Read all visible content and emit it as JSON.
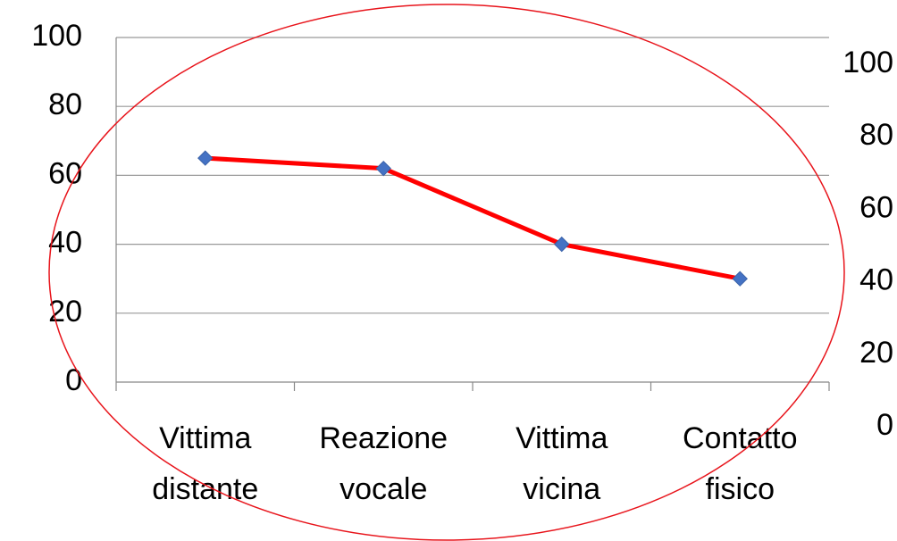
{
  "chart_data": {
    "type": "line",
    "categories": [
      "Vittima distante",
      "Reazione vocale",
      "Vittima vicina",
      "Contatto fisico"
    ],
    "series": [
      {
        "color": "#ff0000",
        "marker_color": "#4472c4",
        "values": [
          65,
          62,
          40,
          30
        ]
      }
    ],
    "ylim": [
      0,
      100
    ],
    "yticks": [
      0,
      20,
      40,
      60,
      80,
      100
    ],
    "y2lim": [
      0,
      100
    ],
    "y2ticks": [
      0,
      20,
      40,
      60,
      80,
      100
    ],
    "grid": true
  }
}
